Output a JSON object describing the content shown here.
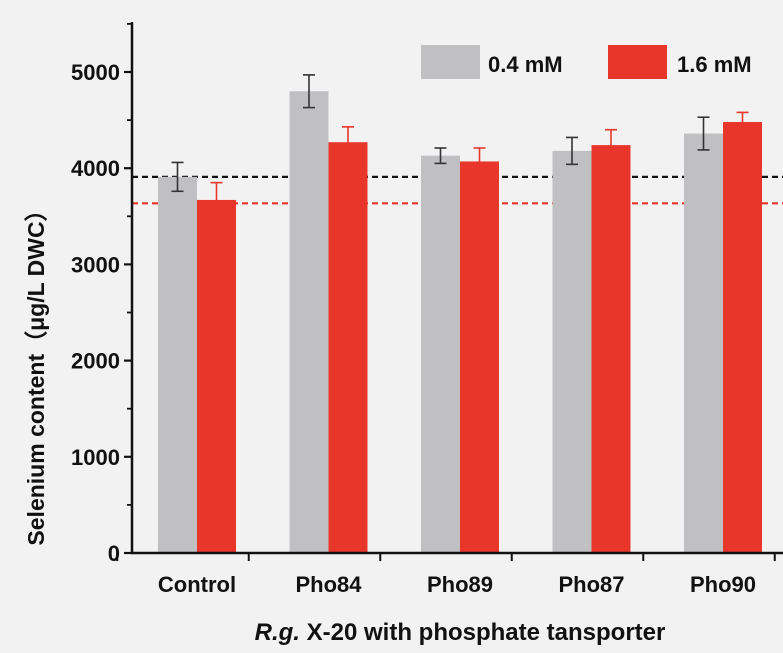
{
  "chart_data": {
    "type": "bar",
    "xlabel_italic": "R.g.",
    "xlabel_rest": " X-20 with phosphate tansporter",
    "ylabel": "Selenium content（μg/L DWC）",
    "categories": [
      "Control",
      "Pho84",
      "Pho89",
      "Pho87",
      "Pho90"
    ],
    "ylim": [
      0,
      5500
    ],
    "yticks": [
      "0",
      "1000",
      "2000",
      "3000",
      "4000",
      "5000"
    ],
    "legend_position": "top-right",
    "grid": false,
    "series": [
      {
        "name": "0.4 mM",
        "color": "#c0c0c3",
        "errbar_color": "#333333",
        "values": [
          3910,
          4800,
          4130,
          4180,
          4360
        ],
        "errors": [
          150,
          170,
          80,
          140,
          170
        ]
      },
      {
        "name": "1.6 mM",
        "color": "#e8362a",
        "errbar_color": "#e8362a",
        "values": [
          3670,
          4270,
          4070,
          4240,
          4480
        ],
        "errors": [
          180,
          160,
          140,
          160,
          100
        ]
      }
    ],
    "reference_lines": [
      {
        "value": 3910,
        "color": "#111111"
      },
      {
        "value": 3635,
        "color": "#e8362a"
      }
    ]
  }
}
